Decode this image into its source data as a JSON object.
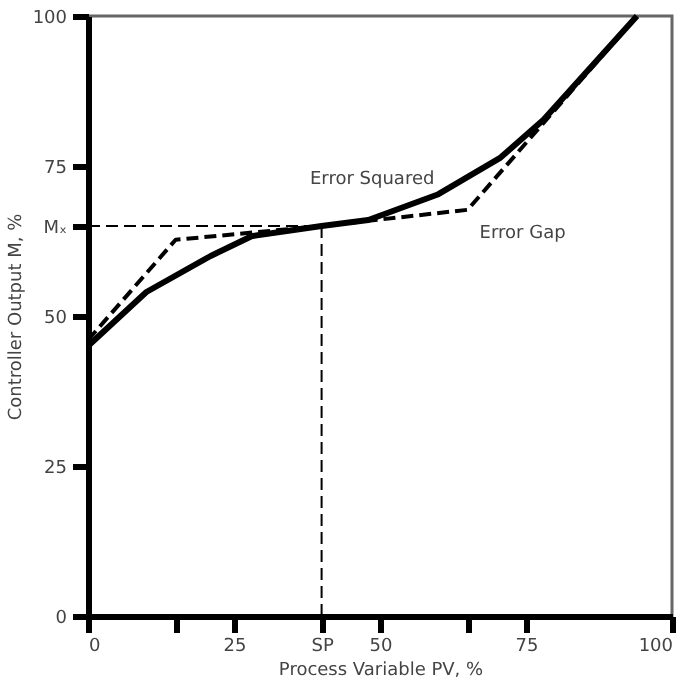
{
  "chart_data": {
    "type": "line",
    "xlabel": "Process Variable PV, %",
    "ylabel": "Controller Output M, %",
    "xlim": [
      0,
      100
    ],
    "ylim": [
      0,
      100
    ],
    "xticks": [
      0,
      {
        "value": 15,
        "label": null
      },
      25,
      {
        "value": 40,
        "label": "SP"
      },
      50,
      {
        "value": 65,
        "label": null
      },
      75,
      100
    ],
    "yticks": [
      0,
      25,
      50,
      {
        "value": 65,
        "label": "Mₓ"
      },
      75,
      100
    ],
    "series": [
      {
        "name": "Error Squared",
        "color": "#000000",
        "line_style": "solid",
        "x": [
          0,
          10,
          21,
          28,
          40,
          48,
          60,
          70.5,
          78,
          94
        ],
        "values": [
          45,
          54,
          60,
          63.3,
          65,
          66,
          70.3,
          76.3,
          82.7,
          100
        ]
      },
      {
        "name": "Error Gap",
        "color": "#000000",
        "line_style": "dashed",
        "x": [
          0,
          15,
          40,
          65,
          94
        ],
        "values": [
          46,
          62.7,
          65,
          67.7,
          100
        ]
      }
    ],
    "ref_lines": [
      {
        "axis": "y",
        "value": 65,
        "line_style": "dashed"
      },
      {
        "axis": "x",
        "value": 40,
        "line_style": "dashed"
      }
    ]
  }
}
